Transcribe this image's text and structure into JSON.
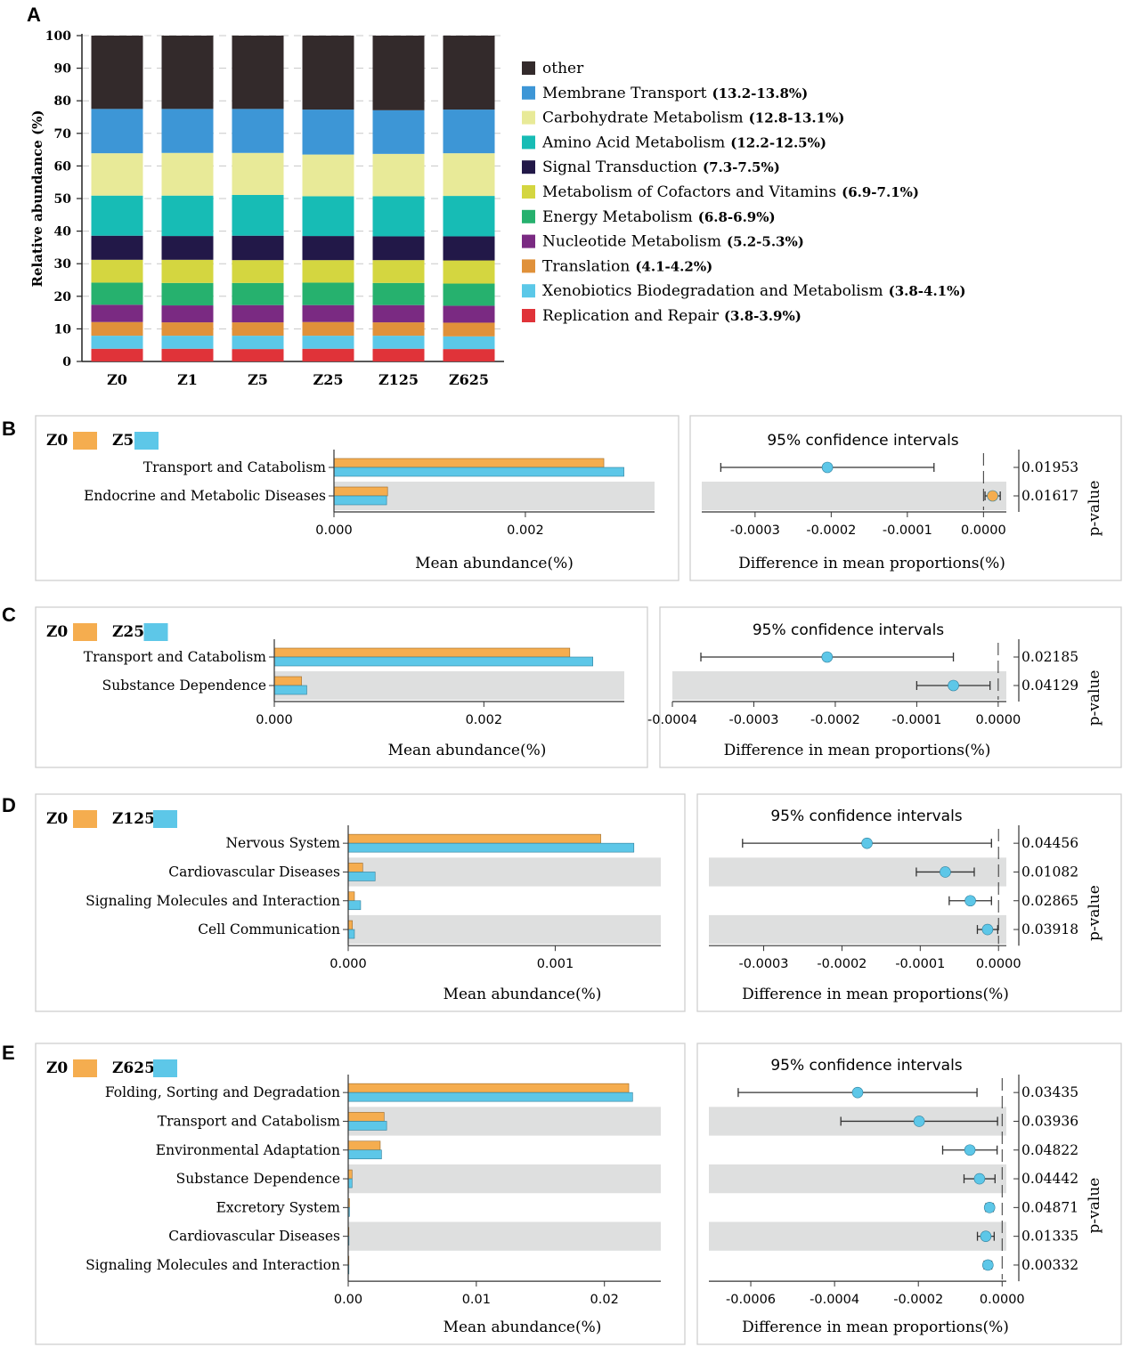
{
  "panelA": {
    "letter": "A",
    "ylabel": "Relative abundance (%)",
    "yticks": [
      0,
      10,
      20,
      30,
      40,
      50,
      60,
      70,
      80,
      90,
      100
    ],
    "ylim": [
      0,
      100
    ],
    "chart_data": {
      "type": "bar",
      "stacked": true,
      "categories": [
        "Z0",
        "Z1",
        "Z5",
        "Z25",
        "Z125",
        "Z625"
      ],
      "series": [
        {
          "name": "Replication and Repair",
          "range": "(3.8-3.9%)",
          "color": "#e03339",
          "values": [
            3.9,
            3.9,
            3.8,
            3.9,
            3.9,
            3.8
          ]
        },
        {
          "name": "Xenobiotics Biodegradation and Metabolism",
          "range": "(3.8-4.1%)",
          "color": "#5bc8e8",
          "values": [
            4.0,
            4.0,
            4.1,
            4.0,
            4.0,
            3.9
          ]
        },
        {
          "name": "Translation",
          "range": "(4.1-4.2%)",
          "color": "#e0913a",
          "values": [
            4.2,
            4.1,
            4.1,
            4.2,
            4.1,
            4.2
          ]
        },
        {
          "name": "Nucleotide Metabolism",
          "range": "(5.2-5.3%)",
          "color": "#7a2a82",
          "values": [
            5.3,
            5.2,
            5.3,
            5.2,
            5.3,
            5.2
          ]
        },
        {
          "name": "Energy Metabolism",
          "range": "(6.8-6.9%)",
          "color": "#26b16e",
          "values": [
            6.8,
            6.9,
            6.8,
            6.9,
            6.8,
            6.8
          ]
        },
        {
          "name": "Metabolism of Cofactors and Vitamins",
          "range": "(6.9-7.1%)",
          "color": "#d4d640",
          "values": [
            7.0,
            7.1,
            7.0,
            6.9,
            7.0,
            7.1
          ]
        },
        {
          "name": "Signal Transduction",
          "range": "(7.3-7.5%)",
          "color": "#221848",
          "values": [
            7.4,
            7.3,
            7.5,
            7.4,
            7.3,
            7.4
          ]
        },
        {
          "name": "Amino Acid Metabolism",
          "range": "(12.2-12.5%)",
          "color": "#17bcb5",
          "values": [
            12.3,
            12.4,
            12.5,
            12.2,
            12.3,
            12.4
          ]
        },
        {
          "name": "Carbohydrate Metabolism",
          "range": "(12.8-13.1%)",
          "color": "#e8ea98",
          "values": [
            13.0,
            13.1,
            12.9,
            12.8,
            13.0,
            13.1
          ]
        },
        {
          "name": "Membrane Transport",
          "range": "(13.2-13.8%)",
          "color": "#3d96d6",
          "values": [
            13.6,
            13.5,
            13.5,
            13.8,
            13.4,
            13.4
          ]
        },
        {
          "name": "other",
          "range": "",
          "color": "#332a2b",
          "values": [
            22.5,
            22.5,
            22.5,
            22.7,
            22.9,
            22.7
          ]
        }
      ]
    }
  },
  "ci_panels": [
    {
      "letter": "B",
      "group1": "Z0",
      "group2": "Z5",
      "color1": "#f5ad4f",
      "color2": "#5dc7e8",
      "mean_xlabel": "Mean abundance(%)",
      "diff_title": "95% confidence intervals",
      "diff_xlabel": "Difference in mean proportions(%)",
      "pvalue_label": "p-value",
      "mean_ticks": [
        "0.000",
        "0.002"
      ],
      "mean_tick_values": [
        0,
        0.002
      ],
      "mean_max": 0.00335,
      "diff_ticks": [
        "-0.0003",
        "-0.0002",
        "-0.0001",
        "0.0000"
      ],
      "diff_tick_values": [
        -0.0003,
        -0.0002,
        -0.0001,
        0
      ],
      "diff_min": -0.00037,
      "diff_max": 3e-05,
      "chart_data": {
        "type": "bar",
        "categories": [
          "Transport and Catabolism",
          "Endocrine and Metabolic Diseases"
        ],
        "series": [
          {
            "name": "Z0",
            "values": [
              0.00282,
              0.00056
            ]
          },
          {
            "name": "Z5",
            "values": [
              0.00303,
              0.00055
            ]
          }
        ],
        "diff": [
          -0.000205,
          1.2e-05
        ],
        "ci_low": [
          -0.000345,
          2e-06
        ],
        "ci_high": [
          -6.5e-05,
          2.2e-05
        ],
        "diff_color": [
          "#5dc7e8",
          "#f5ad4f"
        ],
        "pvalues": [
          "0.01953",
          "0.01617"
        ]
      }
    },
    {
      "letter": "C",
      "group1": "Z0",
      "group2": "Z25",
      "color1": "#f5ad4f",
      "color2": "#5dc7e8",
      "mean_xlabel": "Mean abundance(%)",
      "diff_title": "95% confidence intervals",
      "diff_xlabel": "Difference in mean proportions(%)",
      "pvalue_label": "p-value",
      "mean_ticks": [
        "0.000",
        "0.002"
      ],
      "mean_tick_values": [
        0,
        0.002
      ],
      "mean_max": 0.00334,
      "diff_ticks": [
        "-0.0004",
        "-0.0003",
        "-0.0002",
        "-0.0001",
        "0.0000"
      ],
      "diff_tick_values": [
        -0.0004,
        -0.0003,
        -0.0002,
        -0.0001,
        0
      ],
      "diff_min": -0.0004,
      "diff_max": 1e-05,
      "chart_data": {
        "type": "bar",
        "categories": [
          "Transport and Catabolism",
          "Substance Dependence"
        ],
        "series": [
          {
            "name": "Z0",
            "values": [
              0.00282,
              0.00026
            ]
          },
          {
            "name": "Z25",
            "values": [
              0.00304,
              0.00031
            ]
          }
        ],
        "diff": [
          -0.00021,
          -5.5e-05
        ],
        "ci_low": [
          -0.000365,
          -0.0001
        ],
        "ci_high": [
          -5.5e-05,
          -1e-05
        ],
        "diff_color": [
          "#5dc7e8",
          "#5dc7e8"
        ],
        "pvalues": [
          "0.02185",
          "0.04129"
        ]
      }
    },
    {
      "letter": "D",
      "group1": "Z0",
      "group2": "Z125",
      "color1": "#f5ad4f",
      "color2": "#5dc7e8",
      "mean_xlabel": "Mean abundance(%)",
      "diff_title": "95% confidence intervals",
      "diff_xlabel": "Difference in mean proportions(%)",
      "pvalue_label": "p-value",
      "mean_ticks": [
        "0.000",
        "0.001"
      ],
      "mean_tick_values": [
        0,
        0.001
      ],
      "mean_max": 0.00151,
      "diff_ticks": [
        "-0.0003",
        "-0.0002",
        "-0.0001",
        "0.0000"
      ],
      "diff_tick_values": [
        -0.0003,
        -0.0002,
        -0.0001,
        0
      ],
      "diff_min": -0.00037,
      "diff_max": 1e-05,
      "chart_data": {
        "type": "bar",
        "categories": [
          "Nervous System",
          "Cardiovascular Diseases",
          "Signaling Molecules and Interaction",
          "Cell Communication"
        ],
        "series": [
          {
            "name": "Z0",
            "values": [
              0.00122,
              7e-05,
              3e-05,
              2e-05
            ]
          },
          {
            "name": "Z125",
            "values": [
              0.00138,
              0.00013,
              6e-05,
              3e-05
            ]
          }
        ],
        "diff": [
          -0.000168,
          -6.8e-05,
          -3.6e-05,
          -1.4e-05
        ],
        "ci_low": [
          -0.000327,
          -0.000105,
          -6.3e-05,
          -2.7e-05
        ],
        "ci_high": [
          -9e-06,
          -3.1e-05,
          -9e-06,
          -1e-06
        ],
        "diff_color": [
          "#5dc7e8",
          "#5dc7e8",
          "#5dc7e8",
          "#5dc7e8"
        ],
        "pvalues": [
          "0.04456",
          "0.01082",
          "0.02865",
          "0.03918"
        ]
      }
    },
    {
      "letter": "E",
      "group1": "Z0",
      "group2": "Z625",
      "color1": "#f5ad4f",
      "color2": "#5dc7e8",
      "mean_xlabel": "Mean abundance(%)",
      "diff_title": "95% confidence intervals",
      "diff_xlabel": "Difference in mean proportions(%)",
      "pvalue_label": "p-value",
      "mean_ticks": [
        "0.00",
        "0.01",
        "0.02"
      ],
      "mean_tick_values": [
        0,
        0.01,
        0.02
      ],
      "mean_max": 0.0244,
      "diff_ticks": [
        "-0.0006",
        "-0.0004",
        "-0.0002",
        "0.0000"
      ],
      "diff_tick_values": [
        -0.0006,
        -0.0004,
        -0.0002,
        0
      ],
      "diff_min": -0.0007,
      "diff_max": 1e-05,
      "chart_data": {
        "type": "bar",
        "categories": [
          "Folding, Sorting and Degradation",
          "Transport and Catabolism",
          "Environmental Adaptation",
          "Substance Dependence",
          "Excretory System",
          "Cardiovascular Diseases",
          "Signaling Molecules and Interaction"
        ],
        "series": [
          {
            "name": "Z0",
            "values": [
              0.0219,
              0.0028,
              0.0025,
              0.0003,
              0.0001,
              5e-05,
              3e-05
            ]
          },
          {
            "name": "Z625",
            "values": [
              0.0222,
              0.003,
              0.0026,
              0.0003,
              0.0001,
              6e-05,
              3e-05
            ]
          }
        ],
        "diff": [
          -0.000345,
          -0.000198,
          -7.7e-05,
          -5.4e-05,
          -3e-05,
          -3.9e-05,
          -3.4e-05
        ],
        "ci_low": [
          -0.00063,
          -0.000385,
          -0.000142,
          -9.1e-05,
          -3.9e-05,
          -5.9e-05,
          -4.3e-05
        ],
        "ci_high": [
          -6e-05,
          -1.1e-05,
          -1.2e-05,
          -1.7e-05,
          -2.1e-05,
          -1.9e-05,
          -2.5e-05
        ],
        "diff_color": [
          "#5dc7e8",
          "#5dc7e8",
          "#5dc7e8",
          "#5dc7e8",
          "#5dc7e8",
          "#5dc7e8",
          "#5dc7e8"
        ],
        "pvalues": [
          "0.03435",
          "0.03936",
          "0.04822",
          "0.04442",
          "0.04871",
          "0.01335",
          "0.00332"
        ]
      }
    }
  ]
}
